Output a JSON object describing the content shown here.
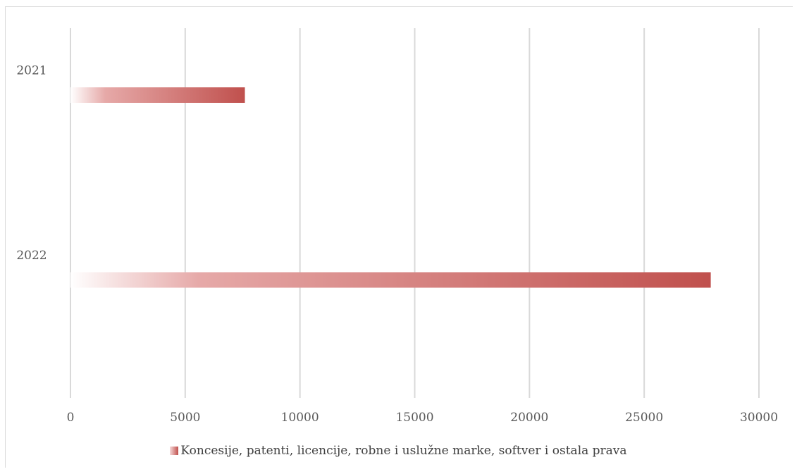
{
  "chart_data": {
    "type": "bar",
    "orientation": "horizontal",
    "categories": [
      "2021",
      "2022"
    ],
    "series": [
      {
        "name": "Koncesije, patenti, licencije, robne i uslužne marke, softver i ostala prava",
        "values": [
          7600,
          27900
        ],
        "color": "#c0504d"
      }
    ],
    "x_ticks": [
      "0",
      "5000",
      "10000",
      "15000",
      "20000",
      "25000",
      "30000"
    ],
    "xlim": [
      0,
      30000
    ],
    "grid": true,
    "legend_position": "bottom",
    "bar_fill": "gradient white to #c0504d"
  }
}
